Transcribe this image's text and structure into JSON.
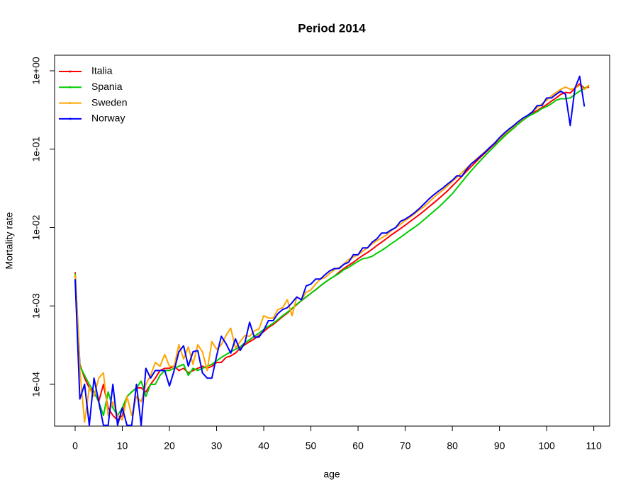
{
  "chart_data": {
    "type": "line",
    "title": "Period 2014",
    "x_label": "age",
    "y_label": "Mortality rate",
    "log_scale": "y",
    "legend": "top-left",
    "x": [
      0,
      1,
      2,
      3,
      4,
      5,
      6,
      7,
      8,
      9,
      10,
      11,
      12,
      13,
      14,
      15,
      16,
      17,
      18,
      19,
      20,
      21,
      22,
      23,
      24,
      25,
      26,
      27,
      28,
      29,
      30,
      31,
      32,
      33,
      34,
      35,
      36,
      37,
      38,
      39,
      40,
      41,
      42,
      43,
      44,
      45,
      46,
      47,
      48,
      49,
      50,
      51,
      52,
      53,
      54,
      55,
      56,
      57,
      58,
      59,
      60,
      61,
      62,
      63,
      64,
      65,
      66,
      67,
      68,
      69,
      70,
      71,
      72,
      73,
      74,
      75,
      76,
      77,
      78,
      79,
      80,
      81,
      82,
      83,
      84,
      85,
      86,
      87,
      88,
      89,
      90,
      91,
      92,
      93,
      94,
      95,
      96,
      97,
      98,
      99,
      100,
      101,
      102,
      103,
      104,
      105,
      106,
      107,
      108,
      109
    ],
    "xlim": [
      -4.36,
      113.36
    ],
    "xticks": [
      0,
      10,
      20,
      30,
      40,
      50,
      60,
      70,
      80,
      90,
      100,
      110
    ],
    "ylim": [
      2.93e-05,
      1.58
    ],
    "yticks": [
      {
        "value": 0.0001,
        "label": "1e-04"
      },
      {
        "value": 0.001,
        "label": "1e-03"
      },
      {
        "value": 0.01,
        "label": "1e-02"
      },
      {
        "value": 0.1,
        "label": "1e-01"
      },
      {
        "value": 1,
        "label": "1e+00"
      }
    ],
    "series": [
      {
        "name": "Italia",
        "color": "#ff0000",
        "values": [
          0.0027,
          0.00018,
          0.00012,
          9e-05,
          8e-05,
          6e-05,
          0.0001,
          5e-05,
          4e-05,
          3.5e-05,
          4e-05,
          7e-05,
          8e-05,
          9e-05,
          9e-05,
          8e-05,
          0.0001,
          0.00012,
          0.00015,
          0.00016,
          0.00016,
          0.00017,
          0.00015,
          0.00016,
          0.00014,
          0.00015,
          0.00016,
          0.00017,
          0.00016,
          0.00017,
          0.00019,
          0.00019,
          0.00022,
          0.00023,
          0.00025,
          0.00029,
          0.00032,
          0.00035,
          0.00038,
          0.00042,
          0.00047,
          0.00053,
          0.00058,
          0.00065,
          0.00073,
          0.00081,
          0.00092,
          0.00104,
          0.00117,
          0.0013,
          0.00145,
          0.0016,
          0.0018,
          0.002,
          0.0022,
          0.0024,
          0.0027,
          0.003,
          0.0033,
          0.0036,
          0.004,
          0.0044,
          0.0048,
          0.0053,
          0.0059,
          0.0065,
          0.0072,
          0.008,
          0.0088,
          0.0097,
          0.0107,
          0.0119,
          0.0132,
          0.0146,
          0.0163,
          0.0183,
          0.0205,
          0.023,
          0.026,
          0.0295,
          0.034,
          0.039,
          0.045,
          0.052,
          0.06,
          0.069,
          0.079,
          0.09,
          0.103,
          0.117,
          0.133,
          0.15,
          0.169,
          0.19,
          0.21,
          0.235,
          0.26,
          0.29,
          0.31,
          0.34,
          0.37,
          0.41,
          0.45,
          0.5,
          0.53,
          0.52,
          0.6,
          0.68,
          0.6,
          0.62
        ]
      },
      {
        "name": "Spania",
        "color": "#00cd00",
        "values": [
          0.0026,
          0.00017,
          0.00013,
          0.0001,
          8e-05,
          6e-05,
          4e-05,
          8e-05,
          5e-05,
          4e-05,
          5e-05,
          7e-05,
          8e-05,
          9e-05,
          0.00011,
          7e-05,
          0.0001,
          0.0001,
          0.00013,
          0.00015,
          0.00015,
          0.00016,
          0.00017,
          0.00018,
          0.00013,
          0.00016,
          0.00015,
          0.00016,
          0.00017,
          0.00018,
          0.0002,
          0.00022,
          0.00024,
          0.00026,
          0.00028,
          0.0003,
          0.00034,
          0.00037,
          0.00041,
          0.00045,
          0.0005,
          0.00055,
          0.0006,
          0.00067,
          0.00075,
          0.00083,
          0.00093,
          0.00105,
          0.00118,
          0.0013,
          0.00145,
          0.0016,
          0.0018,
          0.002,
          0.0022,
          0.0024,
          0.0026,
          0.0029,
          0.0031,
          0.0034,
          0.0037,
          0.004,
          0.0041,
          0.0043,
          0.0047,
          0.0051,
          0.0056,
          0.0062,
          0.0068,
          0.0075,
          0.0083,
          0.0092,
          0.0101,
          0.0112,
          0.0126,
          0.0142,
          0.016,
          0.018,
          0.0205,
          0.0235,
          0.027,
          0.032,
          0.038,
          0.045,
          0.053,
          0.062,
          0.072,
          0.083,
          0.096,
          0.11,
          0.127,
          0.145,
          0.165,
          0.185,
          0.21,
          0.235,
          0.26,
          0.28,
          0.3,
          0.33,
          0.35,
          0.38,
          0.42,
          0.44,
          0.44,
          0.45,
          0.5,
          0.55,
          0.6,
          0.65
        ]
      },
      {
        "name": "Sweden",
        "color": "#ffa500",
        "values": [
          0.0025,
          0.00015,
          3.3e-05,
          9e-05,
          7e-05,
          0.00012,
          0.00014,
          4e-05,
          6e-05,
          4e-05,
          3.5e-05,
          7e-05,
          4e-05,
          7e-05,
          6e-05,
          0.0001,
          0.00013,
          0.00019,
          0.00017,
          0.00024,
          0.00017,
          0.00017,
          0.00032,
          0.00021,
          0.0003,
          0.00018,
          0.00032,
          0.00026,
          0.00015,
          0.00035,
          0.00028,
          0.00032,
          0.00042,
          0.00052,
          0.00029,
          0.00035,
          0.00042,
          0.00041,
          0.00048,
          0.00051,
          0.00075,
          0.0007,
          0.0007,
          0.0009,
          0.00095,
          0.0012,
          0.00075,
          0.0013,
          0.0012,
          0.0015,
          0.0016,
          0.0019,
          0.0022,
          0.0023,
          0.0026,
          0.0029,
          0.0031,
          0.0034,
          0.0039,
          0.0042,
          0.0045,
          0.005,
          0.0055,
          0.0062,
          0.0068,
          0.0074,
          0.008,
          0.0091,
          0.01,
          0.011,
          0.0123,
          0.0135,
          0.015,
          0.0168,
          0.0185,
          0.021,
          0.024,
          0.027,
          0.03,
          0.034,
          0.039,
          0.044,
          0.05,
          0.057,
          0.065,
          0.074,
          0.083,
          0.094,
          0.106,
          0.12,
          0.135,
          0.155,
          0.175,
          0.195,
          0.22,
          0.245,
          0.27,
          0.3,
          0.34,
          0.38,
          0.42,
          0.48,
          0.53,
          0.58,
          0.62,
          0.58,
          0.6,
          0.65,
          0.58,
          0.66
        ]
      },
      {
        "name": "Norway",
        "color": "#0000ff",
        "values": [
          0.0022,
          6.5e-05,
          0.0001,
          3e-05,
          0.00012,
          6e-05,
          3e-05,
          3e-05,
          0.0001,
          3e-05,
          5e-05,
          3e-05,
          3e-05,
          0.0001,
          3e-05,
          0.00016,
          0.00012,
          0.00015,
          0.00015,
          0.00015,
          9.5e-05,
          0.00015,
          0.00026,
          0.00031,
          0.00017,
          0.00026,
          0.00027,
          0.00014,
          0.00012,
          0.00012,
          0.00023,
          0.00041,
          0.00033,
          0.00025,
          0.00038,
          0.00027,
          0.00034,
          0.00062,
          0.0004,
          0.0004,
          0.00049,
          0.00065,
          0.00065,
          0.0008,
          0.0009,
          0.00095,
          0.0011,
          0.0013,
          0.0012,
          0.0018,
          0.0019,
          0.0022,
          0.0022,
          0.0025,
          0.0028,
          0.003,
          0.003,
          0.0034,
          0.0036,
          0.0045,
          0.0045,
          0.0055,
          0.0055,
          0.0065,
          0.0072,
          0.0085,
          0.0085,
          0.0093,
          0.01,
          0.012,
          0.0128,
          0.014,
          0.0155,
          0.0175,
          0.02,
          0.023,
          0.026,
          0.029,
          0.032,
          0.036,
          0.04,
          0.046,
          0.045,
          0.055,
          0.065,
          0.072,
          0.082,
          0.092,
          0.106,
          0.12,
          0.14,
          0.16,
          0.18,
          0.2,
          0.225,
          0.25,
          0.27,
          0.3,
          0.36,
          0.36,
          0.45,
          0.45,
          0.5,
          0.55,
          0.5,
          0.2,
          0.6,
          0.85,
          0.35,
          null
        ]
      }
    ]
  }
}
